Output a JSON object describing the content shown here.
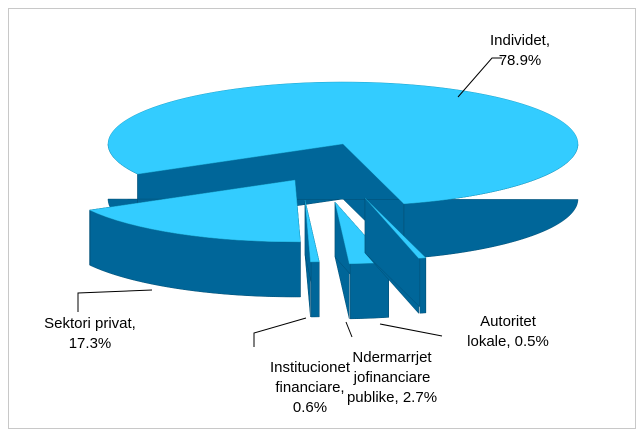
{
  "chart_data": {
    "type": "pie3d",
    "values": [
      78.9,
      17.3,
      0.6,
      2.7,
      0.5
    ],
    "value_labels": [
      [
        "Individet,",
        "78.9%"
      ],
      [
        "Sektori privat,",
        "17.3%"
      ],
      [
        "Institucionet",
        "financiare,",
        "0.6%"
      ],
      [
        "Ndermarrjet",
        "jofinanciare",
        "publike, 2.7%"
      ],
      [
        "Autoritet",
        "lokale, 0.5%"
      ]
    ],
    "color": "#33ccff",
    "side_color": "#006699"
  }
}
